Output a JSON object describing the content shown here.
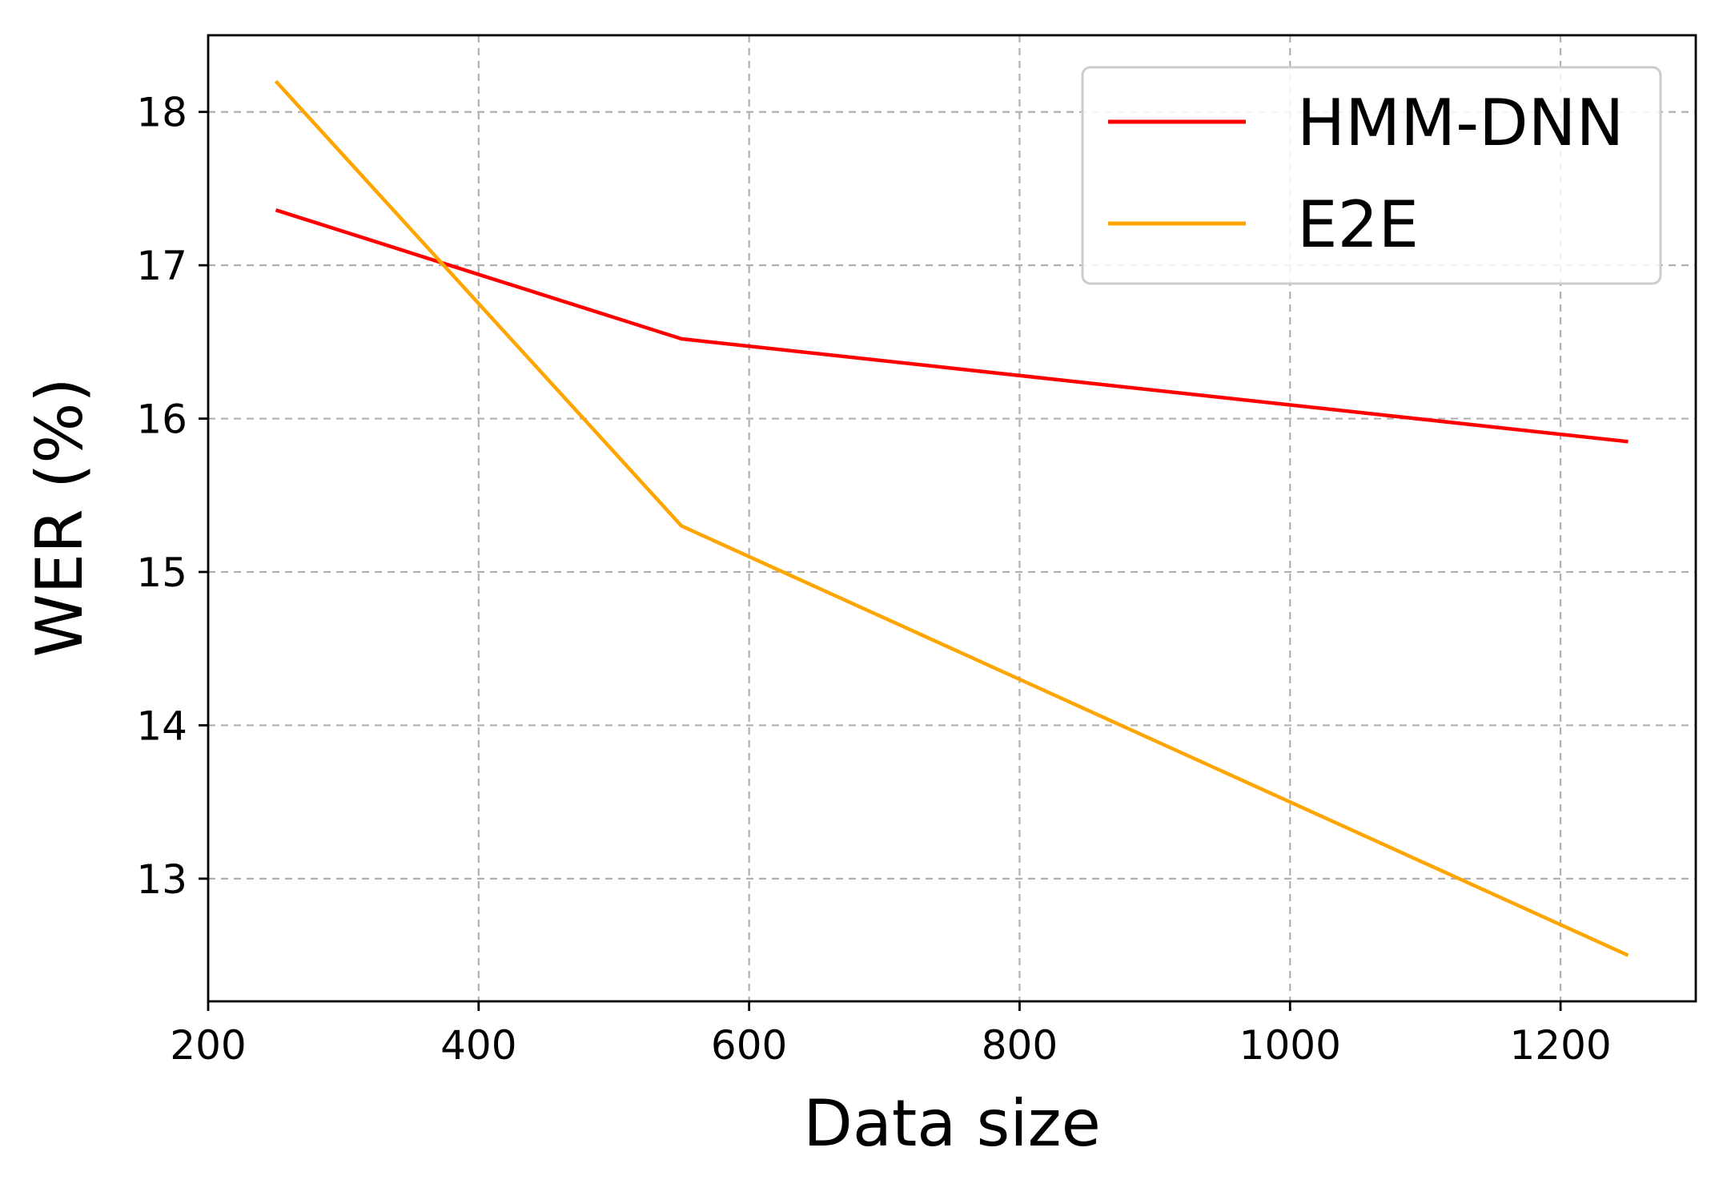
{
  "chart_data": {
    "type": "line",
    "title": "",
    "xlabel": "Data size",
    "ylabel": "WER (%)",
    "xlim": [
      200,
      1300
    ],
    "ylim": [
      12.2,
      18.5
    ],
    "xticks": [
      200,
      400,
      600,
      800,
      1000,
      1200
    ],
    "yticks": [
      13,
      14,
      15,
      16,
      17,
      18
    ],
    "grid": true,
    "legend_position": "top-right",
    "series": [
      {
        "name": "HMM-DNN",
        "color": "#ff0000",
        "x": [
          250,
          550,
          1250
        ],
        "y": [
          17.36,
          16.52,
          15.85
        ]
      },
      {
        "name": "E2E",
        "color": "#ffa500",
        "x": [
          250,
          550,
          1250
        ],
        "y": [
          18.2,
          15.3,
          12.5
        ]
      }
    ]
  }
}
